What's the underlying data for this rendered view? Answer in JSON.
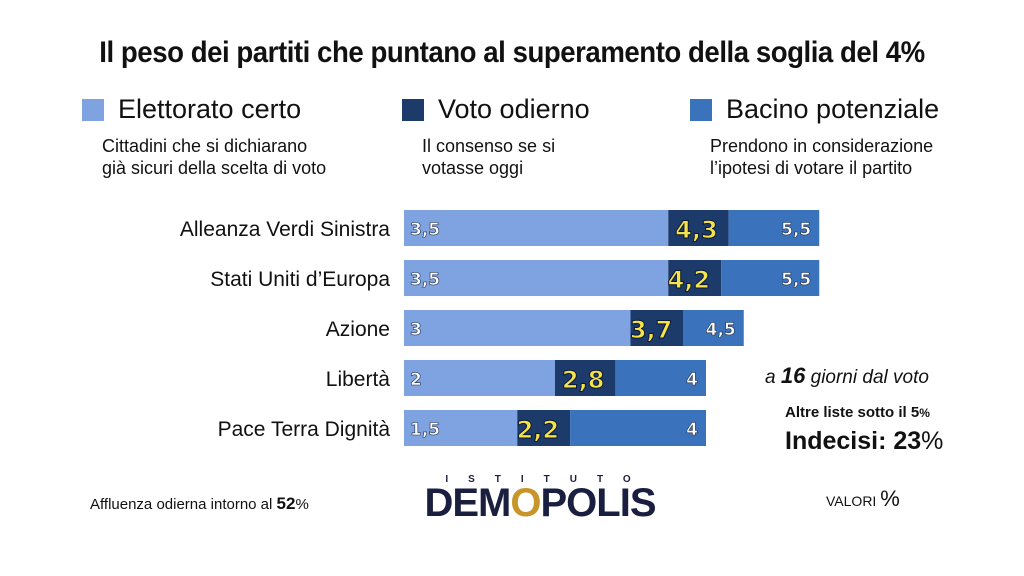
{
  "title": "Il peso dei partiti che puntano al superamento della soglia del 4%",
  "legend": [
    {
      "name": "Elettorato certo",
      "color": "#7fa3e0",
      "desc": "Cittadini che si dichiarano\ngià sicuri della scelta di voto"
    },
    {
      "name": "Voto odierno",
      "color": "#1c3b6b",
      "desc": "Il consenso se si\nvotasse oggi"
    },
    {
      "name": "Bacino potenziale",
      "color": "#3a72bc",
      "desc": "Prendono in considerazione\nl’ipotesi di votare il partito"
    }
  ],
  "chart_data": {
    "type": "bar",
    "categories": [
      "Alleanza Verdi Sinistra",
      "Stati Uniti d’Europa",
      "Azione",
      "Libertà",
      "Pace Terra Dignità"
    ],
    "series": [
      {
        "name": "Elettorato certo",
        "values": [
          3.5,
          3.5,
          3,
          2,
          1.5
        ],
        "labels": [
          "3,5",
          "3,5",
          "3",
          "2",
          "1,5"
        ]
      },
      {
        "name": "Voto odierno",
        "values": [
          4.3,
          4.2,
          3.7,
          2.8,
          2.2
        ],
        "labels": [
          "4,3",
          "4,2",
          "3,7",
          "2,8",
          "2,2"
        ]
      },
      {
        "name": "Bacino potenziale",
        "values": [
          5.5,
          5.5,
          4.5,
          4,
          4
        ],
        "labels": [
          "5,5",
          "5,5",
          "4,5",
          "4",
          "4"
        ]
      }
    ],
    "colors": {
      "certo": "#7fa3e0",
      "odierno": "#1c3b6b",
      "bacino": "#3a72bc",
      "odierno_label": "#f6e24a"
    },
    "xlim": [
      0,
      5.5
    ]
  },
  "notes": {
    "days_pre": "a ",
    "days_num": "16",
    "days_post": " giorni dal voto",
    "altre_main": "Altre liste sotto il 5",
    "altre_pct": "%",
    "indecisi_main": "Indecisi: 23",
    "indecisi_pct": "%",
    "valori_main": "VALORI ",
    "valori_pct": "%",
    "affluenza_main": "Affluenza odierna intorno al ",
    "affluenza_num": "52",
    "affluenza_pct": "%"
  },
  "logo": {
    "top": "ISTITUTO",
    "pre": "DEM",
    "o": "O",
    "post": "POLIS"
  }
}
